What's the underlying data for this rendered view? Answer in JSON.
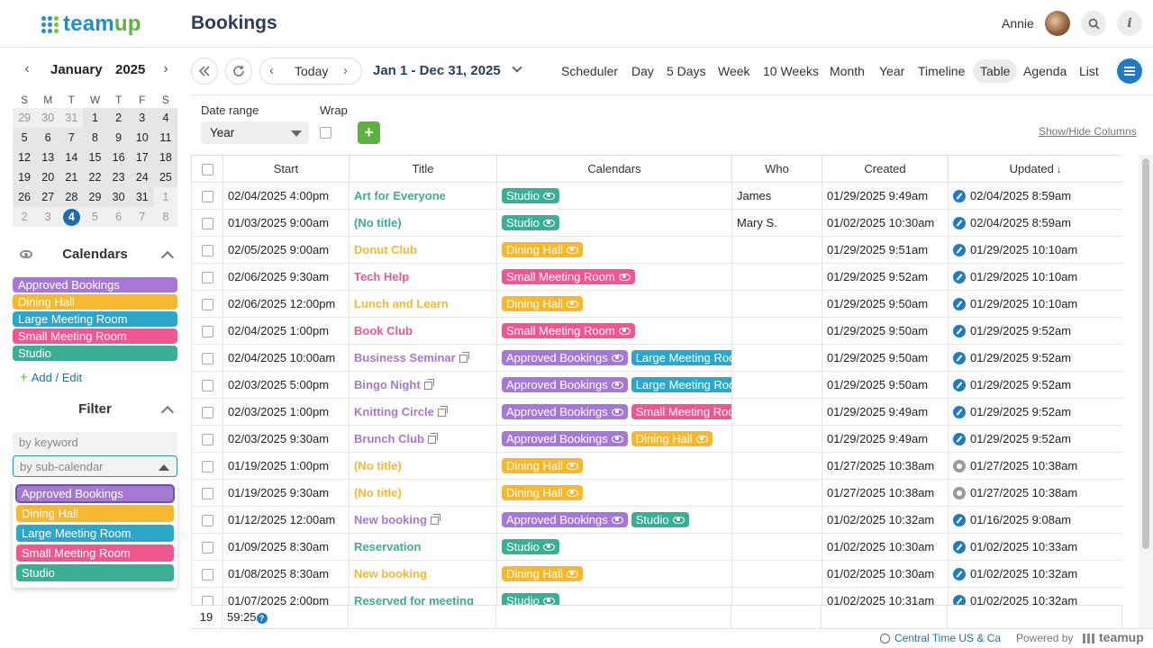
{
  "app": {
    "logo_text_a": "team",
    "logo_text_b": "up",
    "page_title": "Bookings",
    "user_name": "Annie"
  },
  "colors": {
    "approved_bookings": "#a678d6",
    "dining_hall": "#f5b82e",
    "large_meeting_room": "#2ba8c9",
    "small_meeting_room": "#f0568f",
    "studio": "#3aaf93",
    "accent": "#1f7cc4"
  },
  "mini_calendar": {
    "month": "January",
    "year": "2025",
    "weekdays": [
      "S",
      "M",
      "T",
      "W",
      "T",
      "F",
      "S"
    ],
    "weeks": [
      [
        "29",
        "30",
        "31",
        "1",
        "2",
        "3",
        "4"
      ],
      [
        "5",
        "6",
        "7",
        "8",
        "9",
        "10",
        "11"
      ],
      [
        "12",
        "13",
        "14",
        "15",
        "16",
        "17",
        "18"
      ],
      [
        "19",
        "20",
        "21",
        "22",
        "23",
        "24",
        "25"
      ],
      [
        "26",
        "27",
        "28",
        "29",
        "30",
        "31",
        "1"
      ],
      [
        "2",
        "3",
        "4",
        "5",
        "6",
        "7",
        "8"
      ]
    ],
    "today": "4"
  },
  "calendars": {
    "title": "Calendars",
    "items": [
      "Approved Bookings",
      "Dining Hall",
      "Large Meeting Room",
      "Small Meeting Room",
      "Studio"
    ],
    "add_edit": "Add / Edit"
  },
  "filter": {
    "title": "Filter",
    "keyword_placeholder": "by keyword",
    "subcal_placeholder": "by sub-calendar",
    "options": [
      "Approved Bookings",
      "Dining Hall",
      "Large Meeting Room",
      "Small Meeting Room",
      "Studio"
    ],
    "selected": "Approved Bookings"
  },
  "toolbar": {
    "today": "Today",
    "range": "Jan 1 - Dec 31, 2025",
    "views": [
      "Scheduler",
      "Day",
      "5 Days",
      "Week",
      "10 Weeks",
      "Month",
      "Year",
      "Timeline",
      "Table",
      "Agenda",
      "List"
    ],
    "active_view": "Table"
  },
  "options_bar": {
    "date_range_label": "Date range",
    "date_range_value": "Year",
    "wrap_label": "Wrap",
    "show_hide": "Show/Hide Columns"
  },
  "table": {
    "columns": [
      "Start",
      "Title",
      "Calendars",
      "Who",
      "Created",
      "Updated"
    ],
    "sort_column": "Updated",
    "rows": [
      {
        "start": "02/04/2025 4:00pm",
        "title": "Art for Everyone",
        "tc": "studio",
        "ext": false,
        "cals": [
          {
            "n": "Studio",
            "c": "studio"
          }
        ],
        "who": "James",
        "created": "01/29/2025 9:49am",
        "updated": "02/04/2025 8:59am",
        "u": "edit"
      },
      {
        "start": "01/03/2025 9:00am",
        "title": "(No title)",
        "tc": "studio",
        "ext": false,
        "cals": [
          {
            "n": "Studio",
            "c": "studio"
          }
        ],
        "who": "Mary S.",
        "created": "01/02/2025 10:30am",
        "updated": "02/04/2025 8:59am",
        "u": "edit"
      },
      {
        "start": "02/05/2025 9:00am",
        "title": "Donut Club",
        "tc": "dining_hall",
        "ext": false,
        "cals": [
          {
            "n": "Dining Hall",
            "c": "dining_hall"
          }
        ],
        "who": "",
        "created": "01/29/2025 9:51am",
        "updated": "01/29/2025 10:10am",
        "u": "edit"
      },
      {
        "start": "02/06/2025 9:30am",
        "title": "Tech Help",
        "tc": "small_meeting_room",
        "ext": false,
        "cals": [
          {
            "n": "Small Meeting Room",
            "c": "small_meeting_room"
          }
        ],
        "who": "",
        "created": "01/29/2025 9:52am",
        "updated": "01/29/2025 10:10am",
        "u": "edit"
      },
      {
        "start": "02/06/2025 12:00pm",
        "title": "Lunch and Learn",
        "tc": "dining_hall",
        "ext": false,
        "cals": [
          {
            "n": "Dining Hall",
            "c": "dining_hall"
          }
        ],
        "who": "",
        "created": "01/29/2025 9:50am",
        "updated": "01/29/2025 10:10am",
        "u": "edit"
      },
      {
        "start": "02/04/2025 1:00pm",
        "title": "Book Club",
        "tc": "small_meeting_room",
        "ext": false,
        "cals": [
          {
            "n": "Small Meeting Room",
            "c": "small_meeting_room"
          }
        ],
        "who": "",
        "created": "01/29/2025 9:50am",
        "updated": "01/29/2025 9:52am",
        "u": "edit"
      },
      {
        "start": "02/04/2025 10:00am",
        "title": "Business Seminar",
        "tc": "approved_bookings",
        "ext": true,
        "cals": [
          {
            "n": "Approved Bookings",
            "c": "approved_bookings"
          },
          {
            "n": "Large Meeting Room",
            "c": "large_meeting_room"
          }
        ],
        "who": "",
        "created": "01/29/2025 9:50am",
        "updated": "01/29/2025 9:52am",
        "u": "edit"
      },
      {
        "start": "02/03/2025 5:00pm",
        "title": "Bingo Night",
        "tc": "approved_bookings",
        "ext": true,
        "cals": [
          {
            "n": "Approved Bookings",
            "c": "approved_bookings"
          },
          {
            "n": "Large Meeting Room",
            "c": "large_meeting_room"
          }
        ],
        "who": "",
        "created": "01/29/2025 9:50am",
        "updated": "01/29/2025 9:52am",
        "u": "edit"
      },
      {
        "start": "02/03/2025 1:00pm",
        "title": "Knitting Circle",
        "tc": "approved_bookings",
        "ext": true,
        "cals": [
          {
            "n": "Approved Bookings",
            "c": "approved_bookings"
          },
          {
            "n": "Small Meeting Room",
            "c": "small_meeting_room"
          }
        ],
        "who": "",
        "created": "01/29/2025 9:49am",
        "updated": "01/29/2025 9:52am",
        "u": "edit"
      },
      {
        "start": "02/03/2025 9:30am",
        "title": "Brunch Club",
        "tc": "approved_bookings",
        "ext": true,
        "cals": [
          {
            "n": "Approved Bookings",
            "c": "approved_bookings"
          },
          {
            "n": "Dining Hall",
            "c": "dining_hall"
          }
        ],
        "who": "",
        "created": "01/29/2025 9:49am",
        "updated": "01/29/2025 9:52am",
        "u": "edit"
      },
      {
        "start": "01/19/2025 1:00pm",
        "title": "(No title)",
        "tc": "dining_hall",
        "ext": false,
        "cals": [
          {
            "n": "Dining Hall",
            "c": "dining_hall"
          }
        ],
        "who": "",
        "created": "01/27/2025 10:38am",
        "updated": "01/27/2025 10:38am",
        "u": "gear"
      },
      {
        "start": "01/19/2025 9:30am",
        "title": "(No title)",
        "tc": "dining_hall",
        "ext": false,
        "cals": [
          {
            "n": "Dining Hall",
            "c": "dining_hall"
          }
        ],
        "who": "",
        "created": "01/27/2025 10:38am",
        "updated": "01/27/2025 10:38am",
        "u": "gear"
      },
      {
        "start": "01/12/2025 12:00am",
        "title": "New booking",
        "tc": "approved_bookings",
        "ext": true,
        "cals": [
          {
            "n": "Approved Bookings",
            "c": "approved_bookings"
          },
          {
            "n": "Studio",
            "c": "studio"
          }
        ],
        "who": "",
        "created": "01/02/2025 10:32am",
        "updated": "01/16/2025 9:08am",
        "u": "edit"
      },
      {
        "start": "01/09/2025 8:30am",
        "title": "Reservation",
        "tc": "studio",
        "ext": false,
        "cals": [
          {
            "n": "Studio",
            "c": "studio"
          }
        ],
        "who": "",
        "created": "01/02/2025 10:30am",
        "updated": "01/02/2025 10:33am",
        "u": "edit"
      },
      {
        "start": "01/08/2025 8:30am",
        "title": "New booking",
        "tc": "dining_hall",
        "ext": false,
        "cals": [
          {
            "n": "Dining Hall",
            "c": "dining_hall"
          }
        ],
        "who": "",
        "created": "01/02/2025 10:30am",
        "updated": "01/02/2025 10:32am",
        "u": "edit"
      },
      {
        "start": "01/07/2025 2:00pm",
        "title": "Reserved for meeting",
        "tc": "studio",
        "ext": false,
        "cals": [
          {
            "n": "Studio",
            "c": "studio"
          }
        ],
        "who": "",
        "created": "01/02/2025 10:31am",
        "updated": "01/02/2025 10:32am",
        "u": "edit"
      }
    ],
    "footer_count": "19",
    "footer_duration": "59:25"
  },
  "footer": {
    "timezone": "Central Time US & Ca",
    "powered_by": "Powered by",
    "brand": "teamup"
  }
}
